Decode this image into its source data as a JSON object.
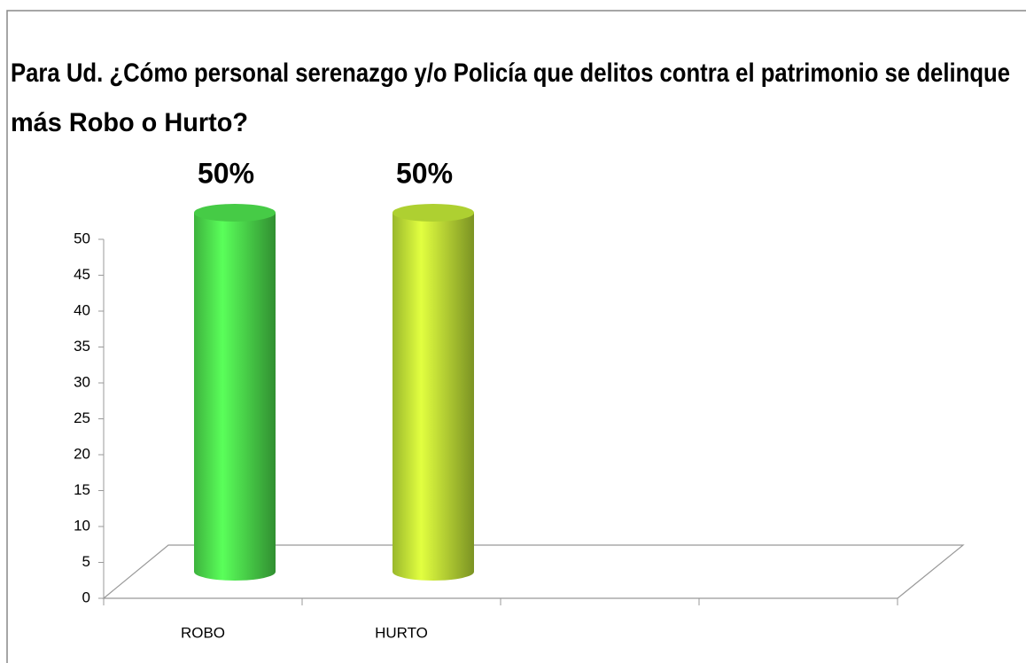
{
  "chart_data": {
    "type": "bar3d",
    "title": [
      "Para Ud. ¿Cómo personal serenazgo y/o Policía que delitos contra el patrimonio se delinque",
      "más Robo o Hurto?"
    ],
    "categories": [
      "ROBO",
      "HURTO",
      null,
      null
    ],
    "values": [
      50,
      50,
      null,
      null
    ],
    "value_labels": [
      "50%",
      "50%",
      null,
      null
    ],
    "colors": [
      "#52ef52",
      "#cdf53a",
      null,
      null
    ],
    "ylim": [
      0,
      50
    ],
    "yticks": [
      0,
      5,
      10,
      15,
      20,
      25,
      30,
      35,
      40,
      45,
      50
    ],
    "grid": false
  }
}
